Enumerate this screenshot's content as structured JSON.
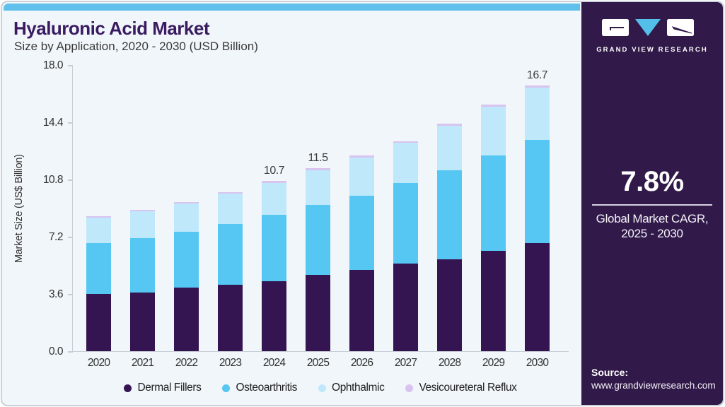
{
  "header": {
    "title": "Hyaluronic Acid Market",
    "subtitle": "Size by Application, 2020 - 2030 (USD Billion)"
  },
  "chart_data": {
    "type": "bar",
    "stacked": true,
    "title": "Hyaluronic Acid Market Size by Application, 2020 - 2030 (USD Billion)",
    "ylabel": "Market Size (US$ Billion)",
    "ylim": [
      0,
      18
    ],
    "yticks": [
      "0.0",
      "3.6",
      "7.2",
      "10.8",
      "14.4",
      "18.0"
    ],
    "grid": false,
    "legend_position": "bottom",
    "categories": [
      "2020",
      "2021",
      "2022",
      "2023",
      "2024",
      "2025",
      "2026",
      "2027",
      "2028",
      "2029",
      "2030"
    ],
    "series": [
      {
        "name": "Dermal Fillers",
        "color": "#341551",
        "values": [
          3.6,
          3.7,
          4.0,
          4.2,
          4.4,
          4.8,
          5.1,
          5.5,
          5.8,
          6.3,
          6.8
        ]
      },
      {
        "name": "Osteoarthritis",
        "color": "#56c7f2",
        "values": [
          3.2,
          3.4,
          3.5,
          3.8,
          4.2,
          4.4,
          4.7,
          5.1,
          5.6,
          6.0,
          6.5
        ]
      },
      {
        "name": "Ophthalmic",
        "color": "#bfe9fb",
        "values": [
          1.6,
          1.7,
          1.8,
          1.9,
          2.0,
          2.2,
          2.4,
          2.5,
          2.8,
          3.1,
          3.3
        ]
      },
      {
        "name": "Vesicoureteral Reflux",
        "color": "#d9c3ef",
        "values": [
          0.1,
          0.1,
          0.1,
          0.1,
          0.1,
          0.1,
          0.1,
          0.1,
          0.1,
          0.1,
          0.1
        ]
      }
    ],
    "bar_labels": [
      "",
      "",
      "",
      "",
      "10.7",
      "11.5",
      "",
      "",
      "",
      "",
      "16.7"
    ],
    "totals": [
      8.5,
      8.9,
      9.4,
      10.0,
      10.7,
      11.5,
      12.3,
      13.2,
      14.3,
      15.5,
      16.7
    ]
  },
  "sidebar": {
    "logo_text": "GRAND VIEW RESEARCH",
    "cagr": {
      "value": "7.8%",
      "caption_line1": "Global Market CAGR,",
      "caption_line2": "2025 - 2030"
    },
    "source": {
      "label": "Source:",
      "url": "www.grandviewresearch.com"
    }
  },
  "colors": {
    "accent_strip": "#5fc0ec",
    "panel_background": "#311a49",
    "title_text": "#3a1b61",
    "logo_triangle": "#54bfe9"
  }
}
